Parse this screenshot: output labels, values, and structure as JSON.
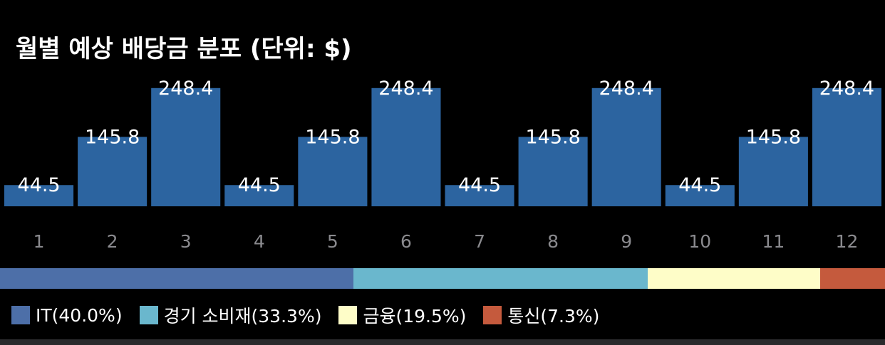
{
  "chart_data": {
    "type": "bar",
    "title": "월별 예상 배당금 분포 (단위: $)",
    "xlabel": "",
    "ylabel": "",
    "categories": [
      "1",
      "2",
      "3",
      "4",
      "5",
      "6",
      "7",
      "8",
      "9",
      "10",
      "11",
      "12"
    ],
    "values": [
      44.5,
      145.8,
      248.4,
      44.5,
      145.8,
      248.4,
      44.5,
      145.8,
      248.4,
      44.5,
      145.8,
      248.4
    ],
    "data_labels": [
      "44.5",
      "145.8",
      "248.4",
      "44.5",
      "145.8",
      "248.4",
      "44.5",
      "145.8",
      "248.4",
      "44.5",
      "145.8",
      "248.4"
    ],
    "ylim": [
      0,
      272
    ],
    "grid": false,
    "bar_color": "#2c64a0",
    "sectors": [
      {
        "label": "IT(40.0%)",
        "share": 40.0,
        "color": "#4d6fa8"
      },
      {
        "label": "경기 소비재(33.3%)",
        "share": 33.3,
        "color": "#6ab7cd"
      },
      {
        "label": "금융(19.5%)",
        "share": 19.5,
        "color": "#fefdc8"
      },
      {
        "label": "통신(7.3%)",
        "share": 7.3,
        "color": "#c55a3d"
      }
    ]
  }
}
